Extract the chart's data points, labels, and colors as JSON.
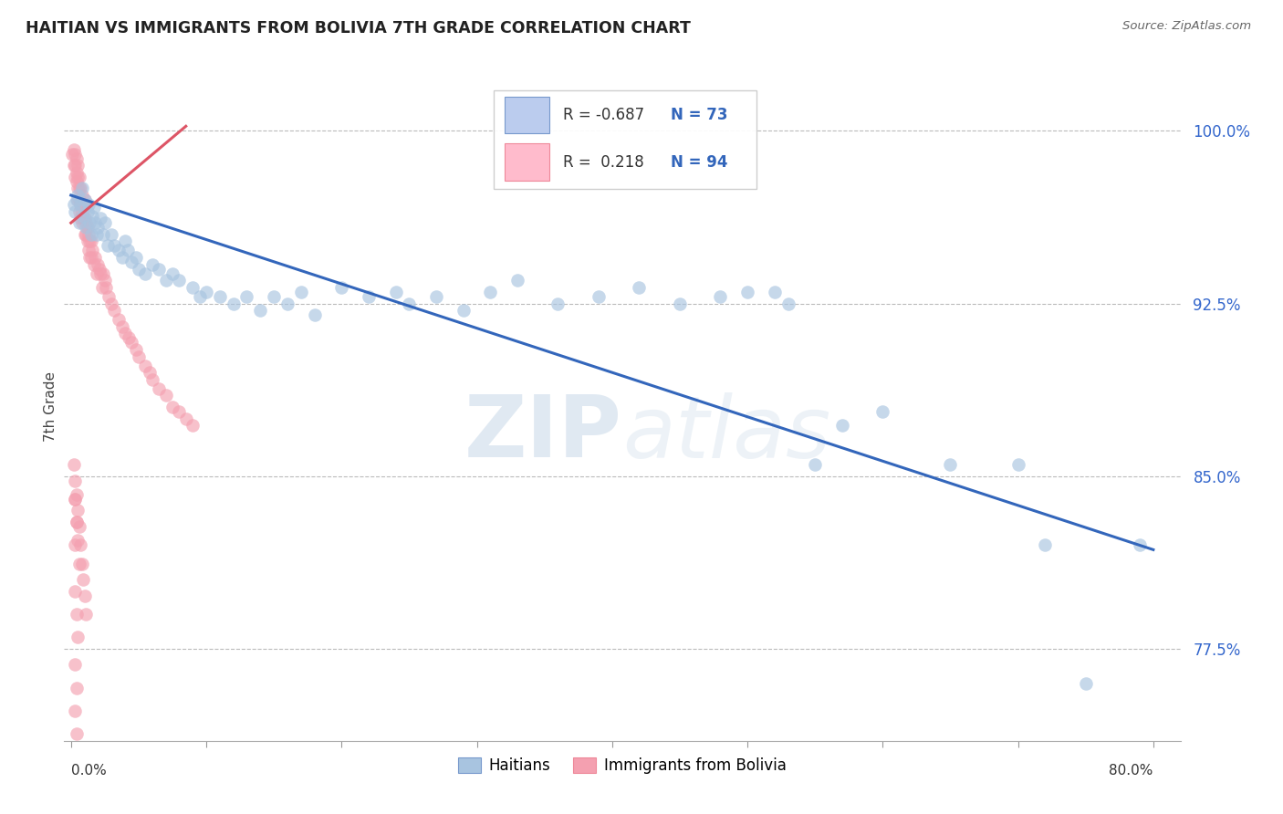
{
  "title": "HAITIAN VS IMMIGRANTS FROM BOLIVIA 7TH GRADE CORRELATION CHART",
  "source": "Source: ZipAtlas.com",
  "ylabel": "7th Grade",
  "blue_color": "#A8C4E0",
  "pink_color": "#F4A0B0",
  "line_blue": "#3366BB",
  "line_pink": "#DD5566",
  "blue_line_x": [
    0.0,
    0.8
  ],
  "blue_line_y": [
    0.972,
    0.818
  ],
  "pink_line_x": [
    0.0,
    0.085
  ],
  "pink_line_y": [
    0.96,
    1.002
  ],
  "watermark_zip": "ZIP",
  "watermark_atlas": "atlas",
  "ytick_values": [
    1.0,
    0.925,
    0.85,
    0.775
  ],
  "ytick_labels": [
    "100.0%",
    "92.5%",
    "85.0%",
    "77.5%"
  ],
  "xlim": [
    -0.005,
    0.82
  ],
  "ylim": [
    0.735,
    1.025
  ],
  "blue_scatter_x": [
    0.002,
    0.003,
    0.004,
    0.005,
    0.006,
    0.007,
    0.008,
    0.009,
    0.01,
    0.011,
    0.012,
    0.013,
    0.014,
    0.015,
    0.016,
    0.017,
    0.018,
    0.019,
    0.02,
    0.022,
    0.024,
    0.025,
    0.027,
    0.03,
    0.032,
    0.035,
    0.038,
    0.04,
    0.042,
    0.045,
    0.048,
    0.05,
    0.055,
    0.06,
    0.065,
    0.07,
    0.075,
    0.08,
    0.09,
    0.095,
    0.1,
    0.11,
    0.12,
    0.13,
    0.14,
    0.15,
    0.16,
    0.17,
    0.18,
    0.2,
    0.22,
    0.24,
    0.25,
    0.27,
    0.29,
    0.31,
    0.33,
    0.36,
    0.39,
    0.42,
    0.45,
    0.48,
    0.5,
    0.52,
    0.53,
    0.55,
    0.57,
    0.6,
    0.65,
    0.7,
    0.72,
    0.75,
    0.79
  ],
  "blue_scatter_y": [
    0.968,
    0.965,
    0.97,
    0.972,
    0.96,
    0.968,
    0.975,
    0.963,
    0.97,
    0.958,
    0.965,
    0.968,
    0.96,
    0.955,
    0.963,
    0.967,
    0.96,
    0.955,
    0.958,
    0.962,
    0.955,
    0.96,
    0.95,
    0.955,
    0.95,
    0.948,
    0.945,
    0.952,
    0.948,
    0.943,
    0.945,
    0.94,
    0.938,
    0.942,
    0.94,
    0.935,
    0.938,
    0.935,
    0.932,
    0.928,
    0.93,
    0.928,
    0.925,
    0.928,
    0.922,
    0.928,
    0.925,
    0.93,
    0.92,
    0.932,
    0.928,
    0.93,
    0.925,
    0.928,
    0.922,
    0.93,
    0.935,
    0.925,
    0.928,
    0.932,
    0.925,
    0.928,
    0.93,
    0.93,
    0.925,
    0.855,
    0.872,
    0.878,
    0.855,
    0.855,
    0.82,
    0.76,
    0.82
  ],
  "pink_scatter_x": [
    0.001,
    0.002,
    0.002,
    0.003,
    0.003,
    0.003,
    0.004,
    0.004,
    0.004,
    0.005,
    0.005,
    0.005,
    0.005,
    0.006,
    0.006,
    0.006,
    0.006,
    0.007,
    0.007,
    0.007,
    0.008,
    0.008,
    0.008,
    0.009,
    0.009,
    0.01,
    0.01,
    0.01,
    0.011,
    0.011,
    0.012,
    0.012,
    0.013,
    0.013,
    0.014,
    0.014,
    0.015,
    0.015,
    0.016,
    0.017,
    0.018,
    0.019,
    0.02,
    0.021,
    0.022,
    0.023,
    0.024,
    0.025,
    0.026,
    0.028,
    0.03,
    0.032,
    0.035,
    0.038,
    0.04,
    0.043,
    0.045,
    0.048,
    0.05,
    0.055,
    0.058,
    0.06,
    0.065,
    0.07,
    0.075,
    0.08,
    0.085,
    0.09,
    0.002,
    0.003,
    0.004,
    0.005,
    0.006,
    0.007,
    0.008,
    0.009,
    0.01,
    0.011,
    0.003,
    0.004,
    0.005,
    0.006,
    0.003,
    0.004,
    0.005,
    0.003,
    0.004,
    0.003,
    0.004,
    0.003,
    0.004,
    0.003
  ],
  "pink_scatter_y": [
    0.99,
    0.992,
    0.985,
    0.99,
    0.985,
    0.98,
    0.988,
    0.982,
    0.978,
    0.985,
    0.98,
    0.975,
    0.97,
    0.98,
    0.975,
    0.97,
    0.965,
    0.975,
    0.968,
    0.962,
    0.972,
    0.965,
    0.96,
    0.968,
    0.962,
    0.97,
    0.962,
    0.955,
    0.96,
    0.955,
    0.958,
    0.952,
    0.955,
    0.948,
    0.952,
    0.945,
    0.952,
    0.945,
    0.948,
    0.942,
    0.945,
    0.938,
    0.942,
    0.94,
    0.938,
    0.932,
    0.938,
    0.935,
    0.932,
    0.928,
    0.925,
    0.922,
    0.918,
    0.915,
    0.912,
    0.91,
    0.908,
    0.905,
    0.902,
    0.898,
    0.895,
    0.892,
    0.888,
    0.885,
    0.88,
    0.878,
    0.875,
    0.872,
    0.855,
    0.848,
    0.842,
    0.835,
    0.828,
    0.82,
    0.812,
    0.805,
    0.798,
    0.79,
    0.84,
    0.83,
    0.822,
    0.812,
    0.8,
    0.79,
    0.78,
    0.768,
    0.758,
    0.748,
    0.738,
    0.84,
    0.83,
    0.82
  ]
}
